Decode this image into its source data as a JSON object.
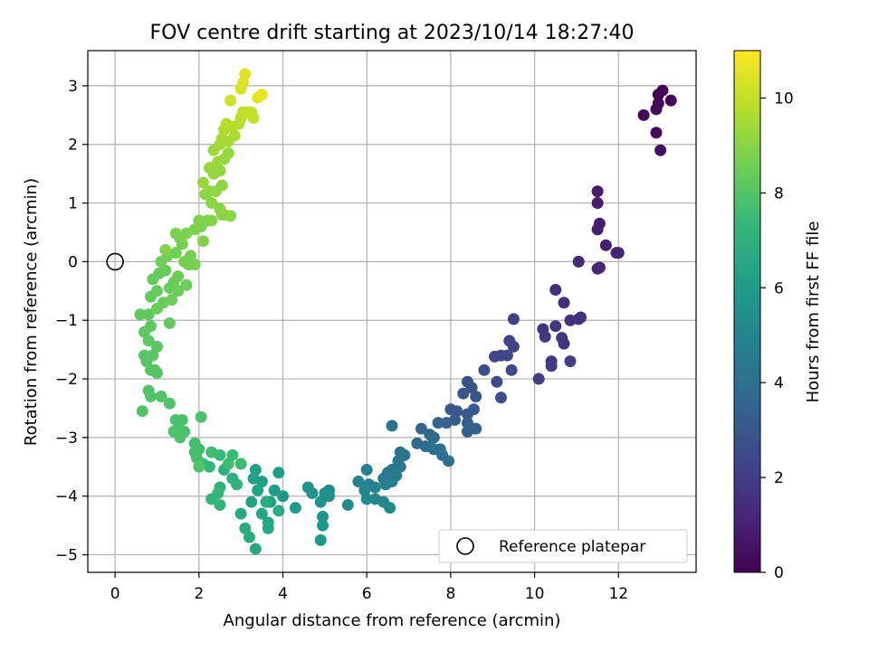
{
  "chart_data": {
    "type": "scatter",
    "title": "FOV centre drift starting at 2023/10/14 18:27:40",
    "xlabel": "Angular distance from reference (arcmin)",
    "ylabel": "Rotation from reference (arcmin)",
    "xlim": [
      -0.65,
      13.85
    ],
    "ylim": [
      -5.3,
      3.6
    ],
    "xticks": [
      0,
      2,
      4,
      6,
      8,
      10,
      12
    ],
    "yticks": [
      -5,
      -4,
      -3,
      -2,
      -1,
      0,
      1,
      2,
      3
    ],
    "grid": true,
    "legend": {
      "placement": "lower right",
      "entries": [
        "Reference platepar"
      ]
    },
    "reference_point": {
      "x": 0,
      "y": 0,
      "label": "Reference platepar"
    },
    "colorbar": {
      "label": "Hours from first FF file",
      "colormap": "viridis",
      "range": [
        0,
        11
      ],
      "ticks": [
        0,
        2,
        4,
        6,
        8,
        10
      ]
    },
    "colormap_stops": [
      "#440154",
      "#482878",
      "#3e4989",
      "#31688e",
      "#26828e",
      "#1f9e89",
      "#35b779",
      "#6ece58",
      "#b5de2b",
      "#fde725"
    ],
    "series": [
      {
        "points": [
          [
            12.95,
            2.85,
            0.05
          ],
          [
            13.05,
            2.92,
            0.1
          ],
          [
            13.25,
            2.75,
            0.15
          ],
          [
            12.6,
            2.5,
            0.2
          ],
          [
            12.9,
            2.6,
            0.25
          ],
          [
            12.95,
            2.7,
            0.3
          ],
          [
            12.9,
            2.2,
            0.35
          ],
          [
            13.0,
            1.9,
            0.4
          ],
          [
            11.5,
            1.2,
            0.8
          ],
          [
            11.5,
            1.0,
            0.85
          ],
          [
            11.55,
            0.65,
            0.9
          ],
          [
            11.5,
            0.55,
            0.95
          ],
          [
            11.7,
            0.28,
            1.0
          ],
          [
            11.95,
            0.15,
            1.05
          ],
          [
            12.0,
            0.15,
            1.1
          ],
          [
            11.5,
            -0.12,
            1.15
          ],
          [
            11.55,
            -0.1,
            1.2
          ],
          [
            11.05,
            0.0,
            1.25
          ],
          [
            10.5,
            -0.48,
            1.4
          ],
          [
            10.7,
            -0.7,
            1.45
          ],
          [
            11.05,
            -0.98,
            1.5
          ],
          [
            11.1,
            -0.95,
            1.55
          ],
          [
            10.85,
            -1.0,
            1.6
          ],
          [
            10.2,
            -1.15,
            1.65
          ],
          [
            10.5,
            -1.1,
            1.7
          ],
          [
            10.65,
            -1.3,
            1.75
          ],
          [
            10.7,
            -1.4,
            1.8
          ],
          [
            10.25,
            -1.28,
            1.85
          ],
          [
            10.4,
            -1.7,
            1.9
          ],
          [
            10.4,
            -1.78,
            1.95
          ],
          [
            10.85,
            -1.7,
            2.0
          ],
          [
            10.1,
            -2.0,
            2.05
          ],
          [
            9.5,
            -0.98,
            2.2
          ],
          [
            9.4,
            -1.35,
            2.25
          ],
          [
            9.5,
            -1.45,
            2.3
          ],
          [
            9.2,
            -1.6,
            2.35
          ],
          [
            9.05,
            -1.62,
            2.4
          ],
          [
            9.35,
            -1.6,
            2.45
          ],
          [
            9.45,
            -1.85,
            2.5
          ],
          [
            9.1,
            -2.05,
            2.55
          ],
          [
            9.2,
            -2.32,
            2.6
          ],
          [
            8.8,
            -1.85,
            2.65
          ],
          [
            8.4,
            -2.05,
            2.8
          ],
          [
            8.5,
            -2.15,
            2.85
          ],
          [
            8.3,
            -2.25,
            2.9
          ],
          [
            8.6,
            -2.3,
            2.95
          ],
          [
            8.0,
            -2.52,
            3.0
          ],
          [
            8.15,
            -2.55,
            3.05
          ],
          [
            8.4,
            -2.6,
            3.1
          ],
          [
            8.55,
            -2.52,
            3.15
          ],
          [
            8.1,
            -2.7,
            3.2
          ],
          [
            8.4,
            -2.75,
            3.25
          ],
          [
            8.6,
            -2.85,
            3.3
          ],
          [
            8.4,
            -2.9,
            3.35
          ],
          [
            7.9,
            -2.75,
            3.4
          ],
          [
            7.7,
            -2.75,
            3.45
          ],
          [
            7.3,
            -2.85,
            3.6
          ],
          [
            7.5,
            -2.95,
            3.65
          ],
          [
            7.6,
            -3.0,
            3.7
          ],
          [
            7.2,
            -3.1,
            3.75
          ],
          [
            7.4,
            -3.15,
            3.8
          ],
          [
            7.6,
            -3.2,
            3.85
          ],
          [
            7.75,
            -3.2,
            3.9
          ],
          [
            7.8,
            -3.3,
            3.95
          ],
          [
            7.95,
            -3.4,
            4.0
          ],
          [
            7.5,
            -3.15,
            4.05
          ],
          [
            6.6,
            -2.8,
            4.2
          ],
          [
            6.8,
            -3.25,
            4.25
          ],
          [
            6.9,
            -3.3,
            4.3
          ],
          [
            6.75,
            -3.4,
            4.35
          ],
          [
            6.8,
            -3.5,
            4.4
          ],
          [
            6.6,
            -3.55,
            4.45
          ],
          [
            6.5,
            -3.6,
            4.5
          ],
          [
            6.7,
            -3.65,
            4.55
          ],
          [
            6.4,
            -3.7,
            4.6
          ],
          [
            6.6,
            -3.75,
            4.65
          ],
          [
            6.45,
            -3.8,
            4.7
          ],
          [
            6.0,
            -3.55,
            4.85
          ],
          [
            5.8,
            -3.75,
            4.9
          ],
          [
            6.05,
            -3.8,
            4.95
          ],
          [
            6.2,
            -3.85,
            5.0
          ],
          [
            5.95,
            -3.9,
            5.05
          ],
          [
            6.2,
            -4.05,
            5.1
          ],
          [
            6.4,
            -4.1,
            5.15
          ],
          [
            6.0,
            -4.05,
            5.2
          ],
          [
            5.55,
            -4.15,
            5.25
          ],
          [
            6.55,
            -4.2,
            5.3
          ],
          [
            5.1,
            -3.9,
            5.45
          ],
          [
            5.0,
            -3.95,
            5.5
          ],
          [
            5.1,
            -4.0,
            5.55
          ],
          [
            4.9,
            -4.1,
            5.6
          ],
          [
            4.6,
            -3.85,
            5.65
          ],
          [
            4.7,
            -3.95,
            5.7
          ],
          [
            4.95,
            -4.35,
            5.75
          ],
          [
            4.95,
            -4.5,
            5.8
          ],
          [
            4.9,
            -4.75,
            5.85
          ],
          [
            4.0,
            -4.0,
            5.9
          ],
          [
            4.3,
            -4.2,
            5.95
          ],
          [
            3.9,
            -3.6,
            6.05
          ],
          [
            3.8,
            -3.9,
            6.1
          ],
          [
            3.7,
            -4.1,
            6.15
          ],
          [
            3.5,
            -3.75,
            6.2
          ],
          [
            3.35,
            -3.55,
            6.25
          ],
          [
            3.3,
            -3.7,
            6.3
          ],
          [
            3.4,
            -3.9,
            6.35
          ],
          [
            3.25,
            -4.1,
            6.4
          ],
          [
            3.5,
            -4.3,
            6.45
          ],
          [
            3.65,
            -4.45,
            6.5
          ],
          [
            3.65,
            -4.55,
            6.55
          ],
          [
            3.0,
            -4.3,
            6.6
          ],
          [
            3.35,
            -4.9,
            6.65
          ],
          [
            3.2,
            -4.7,
            6.7
          ],
          [
            3.1,
            -4.55,
            6.75
          ],
          [
            3.6,
            -4.1,
            6.8
          ],
          [
            3.9,
            -4.25,
            6.85
          ],
          [
            2.6,
            -3.55,
            6.95
          ],
          [
            2.8,
            -3.7,
            7.0
          ],
          [
            2.9,
            -3.8,
            7.05
          ],
          [
            2.5,
            -3.85,
            7.1
          ],
          [
            2.3,
            -4.05,
            7.15
          ],
          [
            2.5,
            -4.15,
            7.2
          ],
          [
            2.45,
            -3.95,
            7.25
          ],
          [
            2.25,
            -3.5,
            7.3
          ],
          [
            2.1,
            -3.45,
            7.35
          ],
          [
            2.5,
            -3.3,
            7.4
          ],
          [
            2.8,
            -3.3,
            7.45
          ],
          [
            3.0,
            -3.45,
            7.5
          ],
          [
            2.7,
            -3.45,
            7.55
          ],
          [
            2.3,
            -3.25,
            7.6
          ],
          [
            2.0,
            -3.2,
            7.65
          ],
          [
            1.9,
            -3.1,
            7.7
          ],
          [
            1.9,
            -3.25,
            7.72
          ],
          [
            1.95,
            -3.35,
            7.74
          ],
          [
            1.65,
            -2.9,
            7.76
          ],
          [
            1.6,
            -2.7,
            7.78
          ],
          [
            1.5,
            -2.85,
            7.8
          ],
          [
            1.45,
            -2.7,
            7.82
          ],
          [
            1.55,
            -3.0,
            7.84
          ],
          [
            1.4,
            -2.9,
            7.86
          ],
          [
            2.05,
            -2.65,
            7.88
          ],
          [
            2.0,
            -3.5,
            7.9
          ],
          [
            1.3,
            -2.42,
            7.92
          ],
          [
            1.1,
            -2.3,
            7.95
          ],
          [
            0.85,
            -2.3,
            7.97
          ],
          [
            0.65,
            -2.55,
            7.99
          ],
          [
            0.8,
            -2.2,
            8.01
          ],
          [
            0.95,
            -1.85,
            8.03
          ],
          [
            1.0,
            -1.9,
            8.05
          ],
          [
            0.75,
            -1.7,
            8.07
          ],
          [
            0.85,
            -1.85,
            8.09
          ],
          [
            0.7,
            -1.6,
            8.11
          ],
          [
            0.9,
            -1.6,
            8.13
          ],
          [
            1.0,
            -1.45,
            8.15
          ],
          [
            0.8,
            -1.35,
            8.17
          ],
          [
            0.7,
            -1.2,
            8.19
          ],
          [
            0.85,
            -1.1,
            8.21
          ],
          [
            0.6,
            -0.9,
            8.23
          ],
          [
            0.8,
            -0.9,
            8.25
          ],
          [
            1.3,
            -1.05,
            8.27
          ],
          [
            0.85,
            -0.6,
            8.3
          ],
          [
            1.0,
            -0.5,
            8.32
          ],
          [
            0.9,
            -0.3,
            8.34
          ],
          [
            1.05,
            -0.2,
            8.36
          ],
          [
            1.2,
            -0.15,
            8.38
          ],
          [
            1.3,
            -0.45,
            8.4
          ],
          [
            1.15,
            -0.7,
            8.42
          ],
          [
            1.0,
            -0.8,
            8.44
          ],
          [
            1.4,
            -0.35,
            8.46
          ],
          [
            1.5,
            -0.25,
            8.48
          ],
          [
            1.7,
            -0.4,
            8.5
          ],
          [
            1.5,
            -0.5,
            8.52
          ],
          [
            1.35,
            -0.65,
            8.54
          ],
          [
            1.1,
            0.0,
            8.58
          ],
          [
            1.25,
            0.1,
            8.6
          ],
          [
            1.45,
            0.15,
            8.62
          ],
          [
            1.6,
            0.3,
            8.64
          ],
          [
            1.8,
            0.1,
            8.66
          ],
          [
            1.65,
            0.0,
            8.68
          ],
          [
            1.75,
            -0.05,
            8.7
          ],
          [
            1.9,
            -0.05,
            8.72
          ],
          [
            1.55,
            0.4,
            8.74
          ],
          [
            1.45,
            0.48,
            8.76
          ],
          [
            1.7,
            0.48,
            8.78
          ],
          [
            1.9,
            0.55,
            8.8
          ],
          [
            2.05,
            0.6,
            8.82
          ],
          [
            2.0,
            0.7,
            8.84
          ],
          [
            2.2,
            0.7,
            8.86
          ],
          [
            2.1,
            0.35,
            8.88
          ],
          [
            2.3,
            0.7,
            8.9
          ],
          [
            1.2,
            0.2,
            8.92
          ],
          [
            2.55,
            0.8,
            9.0
          ],
          [
            2.6,
            0.8,
            9.02
          ],
          [
            2.75,
            0.78,
            9.04
          ],
          [
            2.5,
            0.9,
            9.06
          ],
          [
            2.3,
            1.0,
            9.08
          ],
          [
            2.15,
            1.15,
            9.1
          ],
          [
            2.25,
            1.2,
            9.12
          ],
          [
            2.4,
            1.2,
            9.14
          ],
          [
            2.55,
            1.3,
            9.16
          ],
          [
            2.35,
            1.5,
            9.18
          ],
          [
            2.5,
            1.55,
            9.2
          ],
          [
            2.25,
            1.6,
            9.22
          ],
          [
            2.45,
            1.7,
            9.24
          ],
          [
            2.6,
            1.75,
            9.26
          ],
          [
            2.7,
            1.85,
            9.28
          ],
          [
            2.1,
            1.35,
            9.3
          ],
          [
            2.35,
            1.9,
            9.4
          ],
          [
            2.5,
            2.0,
            9.45
          ],
          [
            2.55,
            2.1,
            9.5
          ],
          [
            2.7,
            2.05,
            9.55
          ],
          [
            2.85,
            2.15,
            9.6
          ],
          [
            2.6,
            2.25,
            9.65
          ],
          [
            2.8,
            2.3,
            9.7
          ],
          [
            2.95,
            2.35,
            9.75
          ],
          [
            2.65,
            2.35,
            9.8
          ],
          [
            3.0,
            2.45,
            9.85
          ],
          [
            3.05,
            2.55,
            9.9
          ],
          [
            3.15,
            2.55,
            9.95
          ],
          [
            3.25,
            2.55,
            10.0
          ],
          [
            3.3,
            2.45,
            10.05
          ],
          [
            2.75,
            2.75,
            10.2
          ],
          [
            3.0,
            2.95,
            10.3
          ],
          [
            3.05,
            3.05,
            10.4
          ],
          [
            3.1,
            3.2,
            10.5
          ],
          [
            3.4,
            2.8,
            10.6
          ],
          [
            3.5,
            2.85,
            10.7
          ]
        ]
      }
    ]
  }
}
